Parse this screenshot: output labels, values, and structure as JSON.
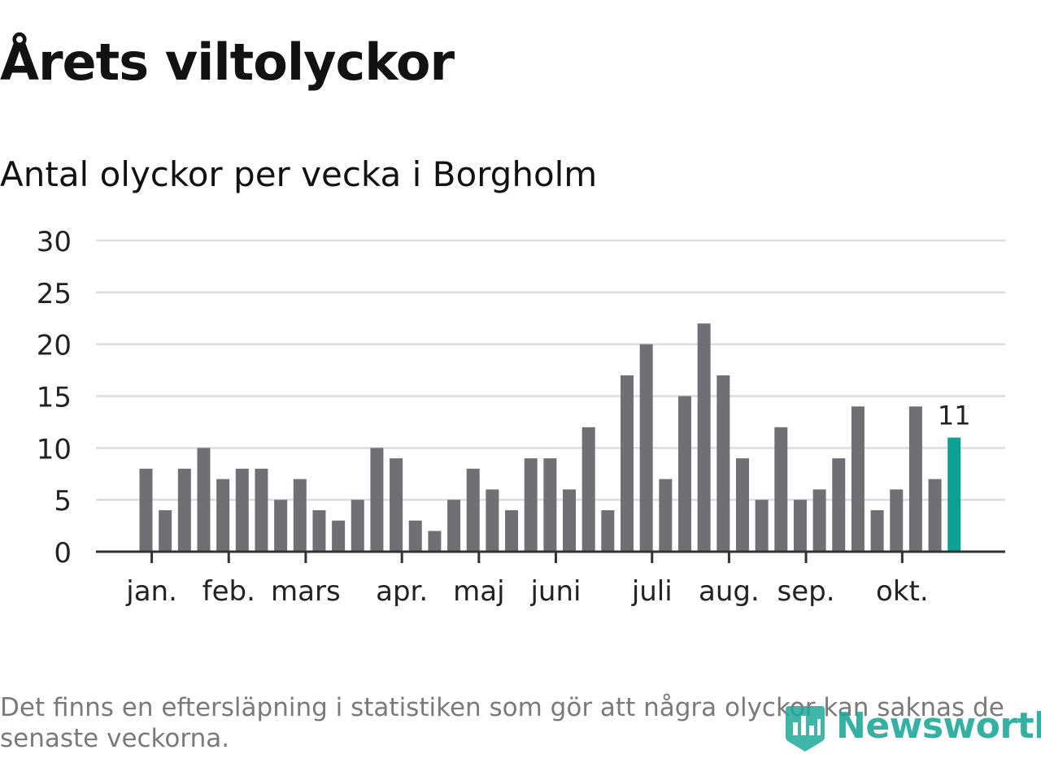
{
  "title": "Årets viltolyckor",
  "subtitle": "Antal olyckor per vecka i Borgholm",
  "footnote": "Det finns en eftersläpning i statistiken som gör att några olyckor kan saknas de senaste veckorna.",
  "brand": {
    "name": "Newsworthy",
    "color": "#1fa99a"
  },
  "colors": {
    "bar": "#707074",
    "highlight": "#0ca194",
    "grid": "#dcdcdc",
    "axis": "#333333",
    "text": "#222222"
  },
  "chart_data": {
    "type": "bar",
    "title": "Antal olyckor per vecka i Borgholm",
    "xlabel": "",
    "ylabel": "",
    "ylim": [
      0,
      30
    ],
    "yticks": [
      0,
      5,
      10,
      15,
      20,
      25,
      30
    ],
    "grid": true,
    "series": [
      {
        "values": [
          8,
          4,
          8,
          10,
          7,
          8,
          8,
          5,
          7,
          4,
          3,
          5,
          10,
          9,
          3,
          2,
          5,
          8,
          6,
          4,
          9,
          9,
          6,
          12,
          4,
          17,
          20,
          7,
          15,
          22,
          17,
          9,
          5,
          12,
          5,
          6,
          9,
          14,
          4,
          6,
          14,
          7,
          11
        ]
      }
    ],
    "highlight": {
      "index": 42,
      "label": "11"
    },
    "month_ticks": [
      {
        "label": "jan.",
        "week": 0.3
      },
      {
        "label": "feb.",
        "week": 4.3
      },
      {
        "label": "mars",
        "week": 8.3
      },
      {
        "label": "apr.",
        "week": 13.3
      },
      {
        "label": "maj",
        "week": 17.3
      },
      {
        "label": "juni",
        "week": 21.3
      },
      {
        "label": "juli",
        "week": 26.3
      },
      {
        "label": "aug.",
        "week": 30.3
      },
      {
        "label": "sep.",
        "week": 34.3
      },
      {
        "label": "okt.",
        "week": 39.3
      }
    ]
  }
}
